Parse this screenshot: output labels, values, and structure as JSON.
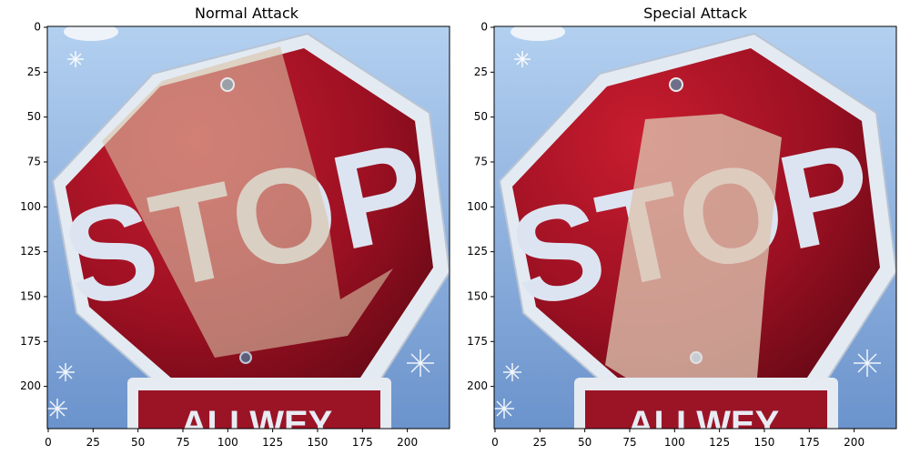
{
  "panels": [
    {
      "title": "Normal Attack",
      "sign_text": "STOP",
      "plate_text": "ALLWEY",
      "x_ticks": [
        "0",
        "25",
        "50",
        "75",
        "100",
        "125",
        "150",
        "175",
        "200"
      ],
      "y_ticks": [
        "0",
        "25",
        "50",
        "75",
        "100",
        "125",
        "150",
        "175",
        "200"
      ],
      "overlay": "normal"
    },
    {
      "title": "Special Attack",
      "sign_text": "STOP",
      "plate_text": "ALLWEY",
      "x_ticks": [
        "0",
        "25",
        "50",
        "75",
        "100",
        "125",
        "150",
        "175",
        "200"
      ],
      "y_ticks": [
        "0",
        "25",
        "50",
        "75",
        "100",
        "125",
        "150",
        "175",
        "200"
      ],
      "overlay": "special"
    }
  ],
  "colors": {
    "sky_top": "#a9c8ec",
    "sky_bottom": "#6f97cf",
    "sign_red": "#a01425",
    "sign_dark": "#6e0a17",
    "sign_border": "#dfe6ef",
    "letter": "#dfe6f3",
    "patch": "#d8c2a8"
  }
}
